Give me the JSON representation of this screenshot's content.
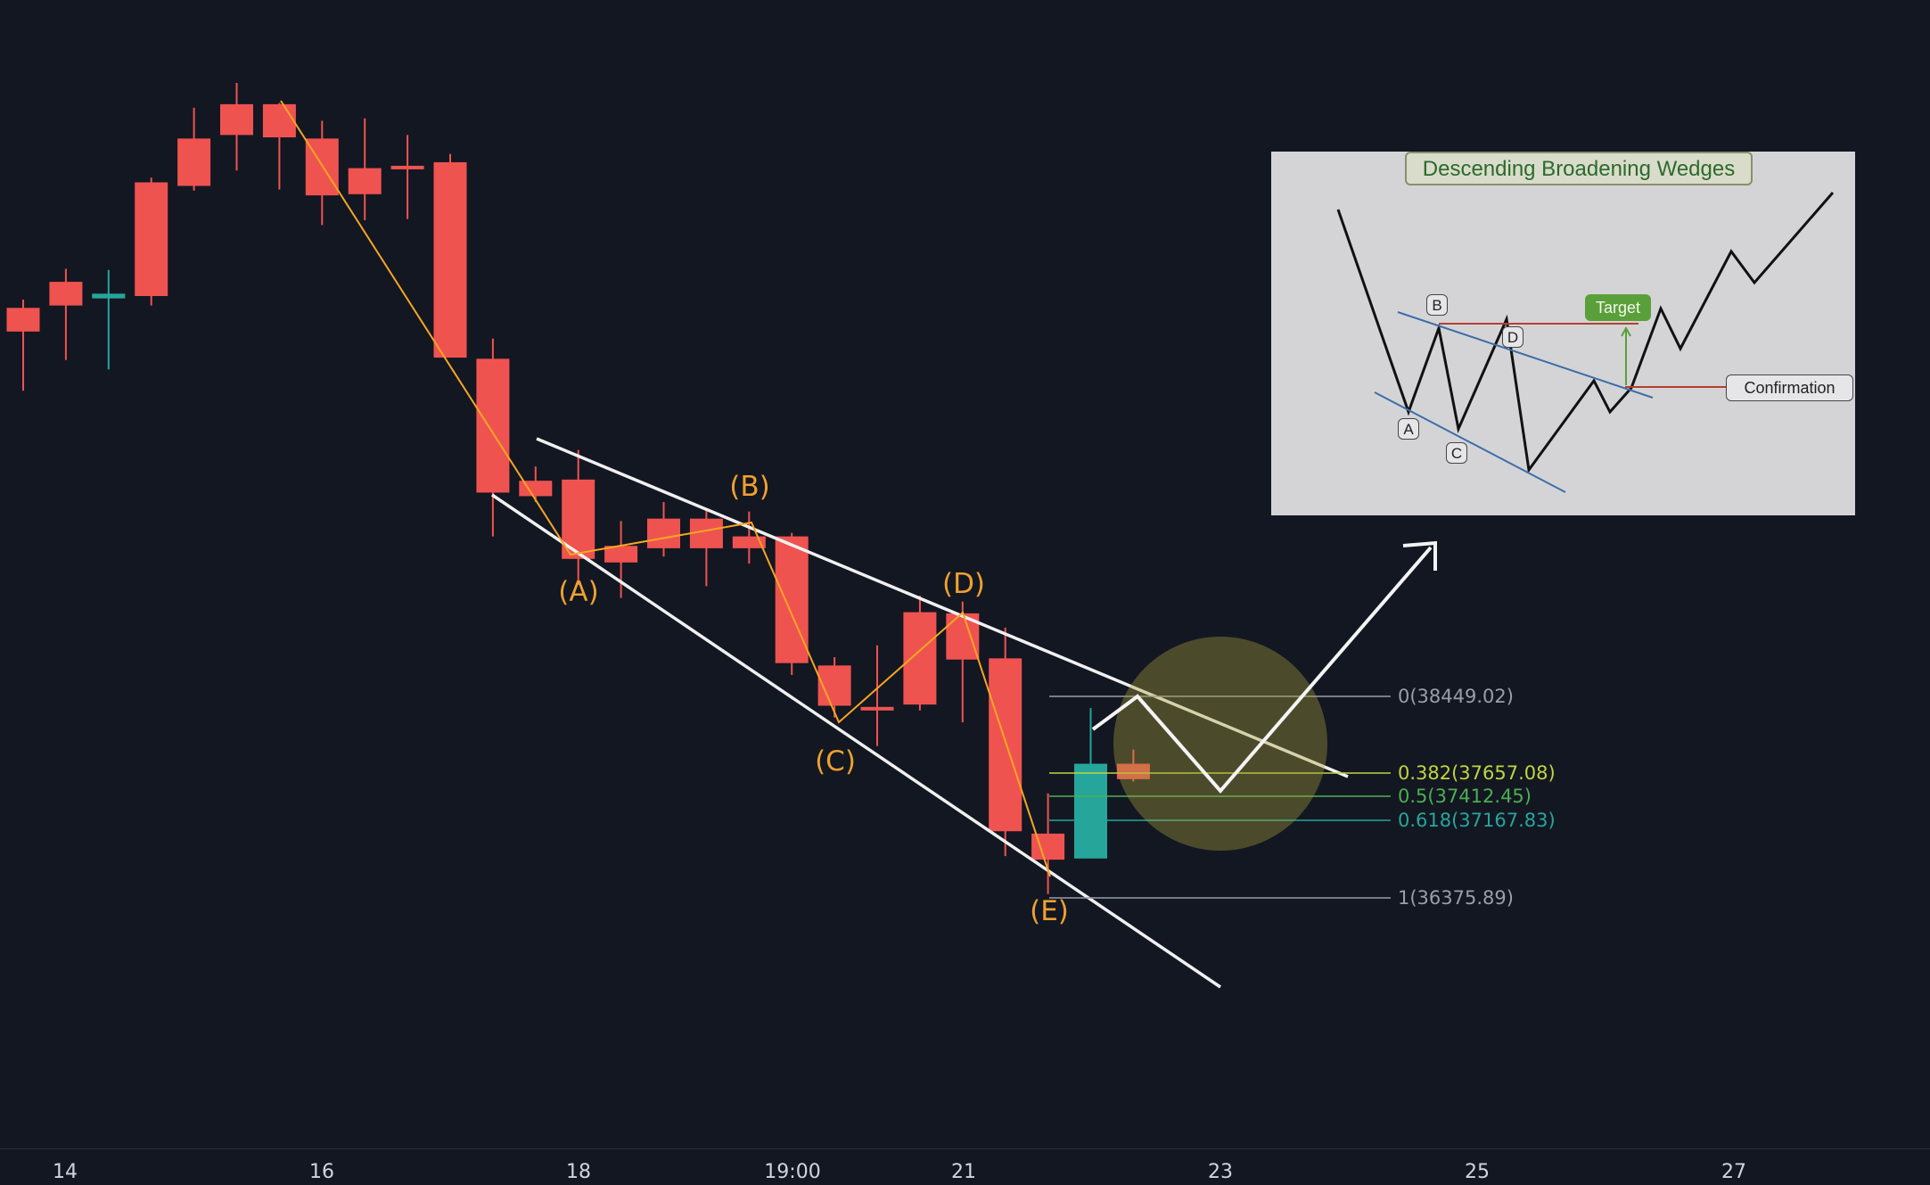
{
  "chart_data": {
    "type": "candlestick",
    "x_ticks": [
      "14",
      "16",
      "18",
      "19:00",
      "21",
      "23",
      "25",
      "27"
    ],
    "candles_ohlc_approx": [
      {
        "o": 0.26,
        "c": 0.28,
        "h": 0.253,
        "l": 0.33
      },
      {
        "o": 0.238,
        "c": 0.258,
        "h": 0.227,
        "l": 0.304
      },
      {
        "o": 0.252,
        "c": 0.248,
        "h": 0.228,
        "l": 0.312
      },
      {
        "o": 0.154,
        "c": 0.25,
        "h": 0.15,
        "l": 0.258
      },
      {
        "o": 0.117,
        "c": 0.157,
        "h": 0.091,
        "l": 0.161
      },
      {
        "o": 0.088,
        "c": 0.114,
        "h": 0.07,
        "l": 0.144
      },
      {
        "o": 0.088,
        "c": 0.116,
        "h": 0.087,
        "l": 0.16
      },
      {
        "o": 0.117,
        "c": 0.165,
        "h": 0.102,
        "l": 0.19
      },
      {
        "o": 0.142,
        "c": 0.164,
        "h": 0.1,
        "l": 0.186
      },
      {
        "o": 0.14,
        "c": 0.142,
        "h": 0.114,
        "l": 0.185
      },
      {
        "o": 0.137,
        "c": 0.302,
        "h": 0.13,
        "l": 0.302
      },
      {
        "o": 0.303,
        "c": 0.416,
        "h": 0.286,
        "l": 0.453
      },
      {
        "o": 0.406,
        "c": 0.419,
        "h": 0.394,
        "l": 0.424
      },
      {
        "o": 0.405,
        "c": 0.472,
        "h": 0.38,
        "l": 0.494
      },
      {
        "o": 0.461,
        "c": 0.475,
        "h": 0.44,
        "l": 0.505
      },
      {
        "o": 0.438,
        "c": 0.463,
        "h": 0.424,
        "l": 0.47
      },
      {
        "o": 0.438,
        "c": 0.463,
        "h": 0.43,
        "l": 0.495
      },
      {
        "o": 0.453,
        "c": 0.463,
        "h": 0.432,
        "l": 0.476
      },
      {
        "o": 0.453,
        "c": 0.56,
        "h": 0.45,
        "l": 0.57
      },
      {
        "o": 0.562,
        "c": 0.596,
        "h": 0.555,
        "l": 0.606
      },
      {
        "o": 0.597,
        "c": 0.597,
        "h": 0.545,
        "l": 0.63
      },
      {
        "o": 0.517,
        "c": 0.595,
        "h": 0.503,
        "l": 0.6
      },
      {
        "o": 0.518,
        "c": 0.557,
        "h": 0.508,
        "l": 0.61
      },
      {
        "o": 0.556,
        "c": 0.702,
        "h": 0.53,
        "l": 0.723
      },
      {
        "o": 0.704,
        "c": 0.726,
        "h": 0.67,
        "l": 0.755
      },
      {
        "o": 0.725,
        "c": 0.645,
        "h": 0.598,
        "l": 0.725
      },
      {
        "o": 0.645,
        "c": 0.658,
        "h": 0.633,
        "l": 0.66
      }
    ],
    "wave_labels": [
      "(A)",
      "(B)",
      "(C)",
      "(D)",
      "(E)"
    ],
    "fib_levels": [
      {
        "label": "0(38449.02)",
        "value": 38449.02,
        "color": "#9a9ea8"
      },
      {
        "label": "0.382(37657.08)",
        "value": 37657.08,
        "color": "#c2d43e"
      },
      {
        "label": "0.5(37412.45)",
        "value": 37412.45,
        "color": "#4caf50"
      },
      {
        "label": "0.618(37167.83)",
        "value": 37167.83,
        "color": "#26a69a"
      },
      {
        "label": "1(36375.89)",
        "value": 36375.89,
        "color": "#9a9ea8"
      }
    ],
    "colors": {
      "up": "#26a69a",
      "down": "#ef5350",
      "background": "#131722",
      "zigzag": "#f5a623"
    }
  },
  "inset": {
    "title": "Descending Broadening Wedges",
    "points": [
      "A",
      "B",
      "C",
      "D"
    ],
    "target_label": "Target",
    "confirmation_label": "Confirmation"
  }
}
